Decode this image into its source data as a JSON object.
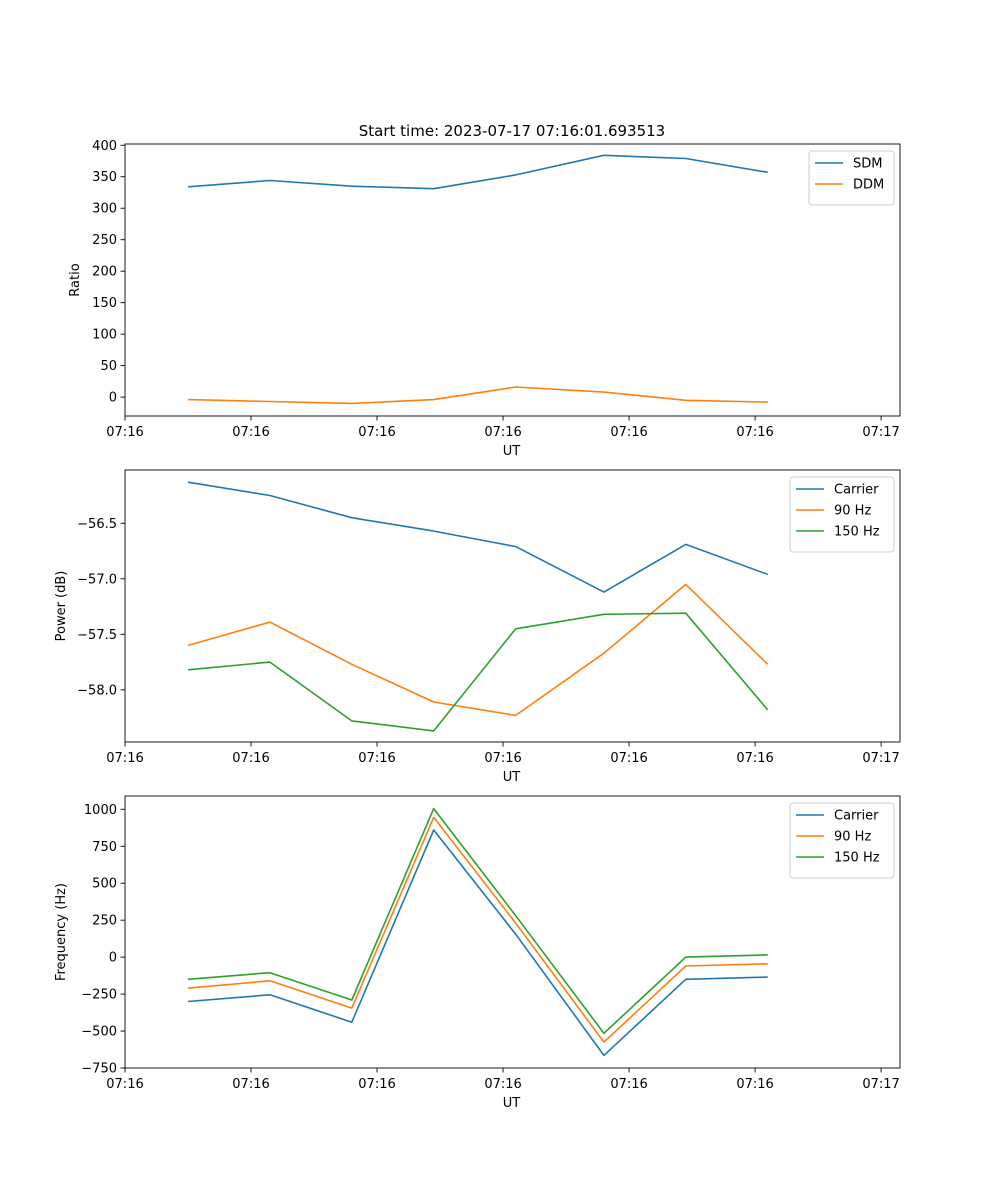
{
  "figure_title": "Start time: 2023-07-17 07:16:01.693513",
  "chart_data": [
    {
      "type": "line",
      "title": "Start time: 2023-07-17 07:16:01.693513",
      "xlabel": "UT",
      "ylabel": "Ratio",
      "xlim": [
        0,
        12.3
      ],
      "ylim": [
        -30,
        402
      ],
      "xticks": [
        0,
        2,
        4,
        6,
        8,
        10,
        12
      ],
      "xtick_labels": [
        "07:16",
        "07:16",
        "07:16",
        "07:16",
        "07:16",
        "07:16",
        "07:17"
      ],
      "yticks": [
        0,
        50,
        100,
        150,
        200,
        250,
        300,
        350,
        400
      ],
      "ytick_labels": [
        "0",
        "50",
        "100",
        "150",
        "200",
        "250",
        "300",
        "350",
        "400"
      ],
      "x": [
        1,
        2.3,
        3.6,
        4.9,
        6.2,
        7.6,
        8.9,
        10.2
      ],
      "legend": "upper right",
      "series": [
        {
          "name": "SDM",
          "color": "#1f77b4",
          "values": [
            334,
            344,
            335,
            331,
            353,
            384,
            379,
            357
          ]
        },
        {
          "name": "DDM",
          "color": "#ff7f0e",
          "values": [
            -4,
            -7,
            -10,
            -4,
            16,
            8,
            -5,
            -8
          ]
        }
      ]
    },
    {
      "type": "line",
      "xlabel": "UT",
      "ylabel": "Power (dB)",
      "xlim": [
        0,
        12.3
      ],
      "ylim": [
        -58.47,
        -56.02
      ],
      "xticks": [
        0,
        2,
        4,
        6,
        8,
        10,
        12
      ],
      "xtick_labels": [
        "07:16",
        "07:16",
        "07:16",
        "07:16",
        "07:16",
        "07:16",
        "07:17"
      ],
      "yticks": [
        -58.0,
        -57.5,
        -57.0,
        -56.5
      ],
      "ytick_labels": [
        "−58.0",
        "−57.5",
        "−57.0",
        "−56.5"
      ],
      "x": [
        1,
        2.3,
        3.6,
        4.9,
        6.2,
        7.6,
        8.9,
        10.2
      ],
      "legend": "upper right",
      "series": [
        {
          "name": "Carrier",
          "color": "#1f77b4",
          "values": [
            -56.13,
            -56.25,
            -56.45,
            -56.57,
            -56.71,
            -57.12,
            -56.69,
            -56.96
          ]
        },
        {
          "name": "90 Hz",
          "color": "#ff7f0e",
          "values": [
            -57.6,
            -57.39,
            -57.77,
            -58.11,
            -58.23,
            -57.67,
            -57.05,
            -57.77
          ]
        },
        {
          "name": "150 Hz",
          "color": "#2ca02c",
          "values": [
            -57.82,
            -57.75,
            -58.28,
            -58.37,
            -57.45,
            -57.32,
            -57.31,
            -58.18
          ]
        }
      ]
    },
    {
      "type": "line",
      "xlabel": "UT",
      "ylabel": "Frequency (Hz)",
      "xlim": [
        0,
        12.3
      ],
      "ylim": [
        -750,
        1090
      ],
      "xticks": [
        0,
        2,
        4,
        6,
        8,
        10,
        12
      ],
      "xtick_labels": [
        "07:16",
        "07:16",
        "07:16",
        "07:16",
        "07:16",
        "07:16",
        "07:17"
      ],
      "yticks": [
        -750,
        -500,
        -250,
        0,
        250,
        500,
        750,
        1000
      ],
      "ytick_labels": [
        "−750",
        "−500",
        "−250",
        "0",
        "250",
        "500",
        "750",
        "1000"
      ],
      "x": [
        1,
        2.3,
        3.6,
        4.9,
        6.2,
        7.6,
        8.9,
        10.2
      ],
      "legend": "upper right",
      "series": [
        {
          "name": "Carrier",
          "color": "#1f77b4",
          "values": [
            -300,
            -255,
            -440,
            860,
            155,
            -665,
            -150,
            -135
          ]
        },
        {
          "name": "90 Hz",
          "color": "#ff7f0e",
          "values": [
            -210,
            -160,
            -345,
            945,
            230,
            -575,
            -60,
            -45
          ]
        },
        {
          "name": "150 Hz",
          "color": "#2ca02c",
          "values": [
            -150,
            -105,
            -290,
            1005,
            280,
            -515,
            0,
            15
          ]
        }
      ]
    }
  ]
}
